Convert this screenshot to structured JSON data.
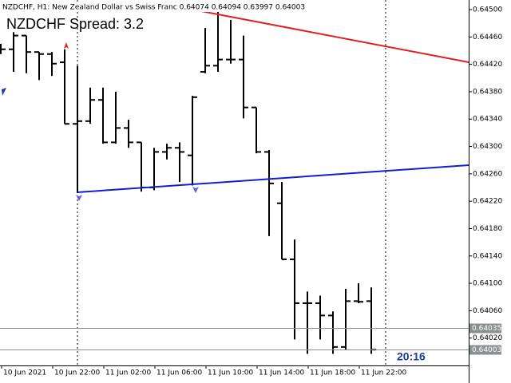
{
  "chart_data": {
    "type": "ohlc",
    "title": "NZDCHF, H1:  New Zealand Dollar vs Swiss Franc  0.64074 0.64094 0.63997 0.64003",
    "spread_label": "NZDCHF Spread: 3.2",
    "timer": "20:16",
    "color": "#000000",
    "categories": [
      "10 Jun 2021",
      null,
      null,
      null,
      "10 Jun 22:00",
      null,
      null,
      null,
      "11 Jun 02:00",
      null,
      null,
      null,
      "11 Jun 06:00",
      null,
      null,
      null,
      "11 Jun 10:00",
      null,
      null,
      null,
      "11 Jun 14:00",
      null,
      null,
      null,
      "11 Jun 18:00",
      null,
      null,
      null,
      "11 Jun 22:00",
      null
    ],
    "open": [
      0.64442,
      0.64442,
      0.64462,
      0.64438,
      0.64435,
      0.64423,
      0.64333,
      0.64337,
      0.64368,
      0.64306,
      0.64327,
      0.64306,
      0.6424,
      0.64292,
      0.64298,
      0.64287,
      0.64409,
      0.64418,
      0.64427,
      0.64427,
      0.64357,
      0.64292,
      0.64217,
      0.64135,
      0.64071,
      0.64071,
      0.64053,
      0.64007,
      0.64074,
      0.64074
    ],
    "high": [
      0.6445,
      0.64467,
      0.64462,
      0.64438,
      0.64438,
      0.64442,
      0.64418,
      0.64386,
      0.64386,
      0.6438,
      0.64339,
      0.64306,
      0.64298,
      0.64304,
      0.64306,
      0.64374,
      0.64473,
      0.64498,
      0.64485,
      0.64462,
      0.64357,
      0.64295,
      0.64248,
      0.64164,
      0.64088,
      0.64082,
      0.64059,
      0.64092,
      0.641,
      0.64094
    ],
    "low": [
      0.64435,
      0.64409,
      0.64407,
      0.64397,
      0.64403,
      0.64333,
      0.64232,
      0.64333,
      0.64304,
      0.64304,
      0.64298,
      0.64234,
      0.64236,
      0.64281,
      0.64248,
      0.64243,
      0.64407,
      0.64409,
      0.64421,
      0.64341,
      0.6429,
      0.64169,
      0.64135,
      0.64018,
      0.63997,
      0.64018,
      0.63997,
      0.64003,
      0.64071,
      0.63997
    ],
    "close": [
      0.64442,
      0.64462,
      0.64438,
      0.64435,
      0.64421,
      0.64333,
      0.64337,
      0.64368,
      0.64306,
      0.64327,
      0.64306,
      0.6424,
      0.64292,
      0.64298,
      0.64292,
      0.64372,
      0.64418,
      0.64427,
      0.64427,
      0.64357,
      0.64292,
      0.64246,
      0.64135,
      0.64071,
      0.64071,
      0.64053,
      0.64007,
      0.64074,
      0.64073,
      0.64003
    ],
    "ylim": [
      0.6398,
      0.64514
    ],
    "yticks": [
      {
        "value": 0.645,
        "label": "0.64500"
      },
      {
        "value": 0.6446,
        "label": "0.64460"
      },
      {
        "value": 0.6442,
        "label": "0.64420"
      },
      {
        "value": 0.6438,
        "label": "0.64380"
      },
      {
        "value": 0.6434,
        "label": "0.64340"
      },
      {
        "value": 0.643,
        "label": "0.64300"
      },
      {
        "value": 0.6426,
        "label": "0.64260"
      },
      {
        "value": 0.6422,
        "label": "0.64220"
      },
      {
        "value": 0.6418,
        "label": "0.64180"
      },
      {
        "value": 0.6414,
        "label": "0.64140"
      },
      {
        "value": 0.641,
        "label": "0.64100"
      },
      {
        "value": 0.6406,
        "label": "0.64060"
      },
      {
        "value": 0.6402,
        "label": "0.64020"
      }
    ],
    "price_lines": [
      0.64035,
      0.64003
    ]
  }
}
